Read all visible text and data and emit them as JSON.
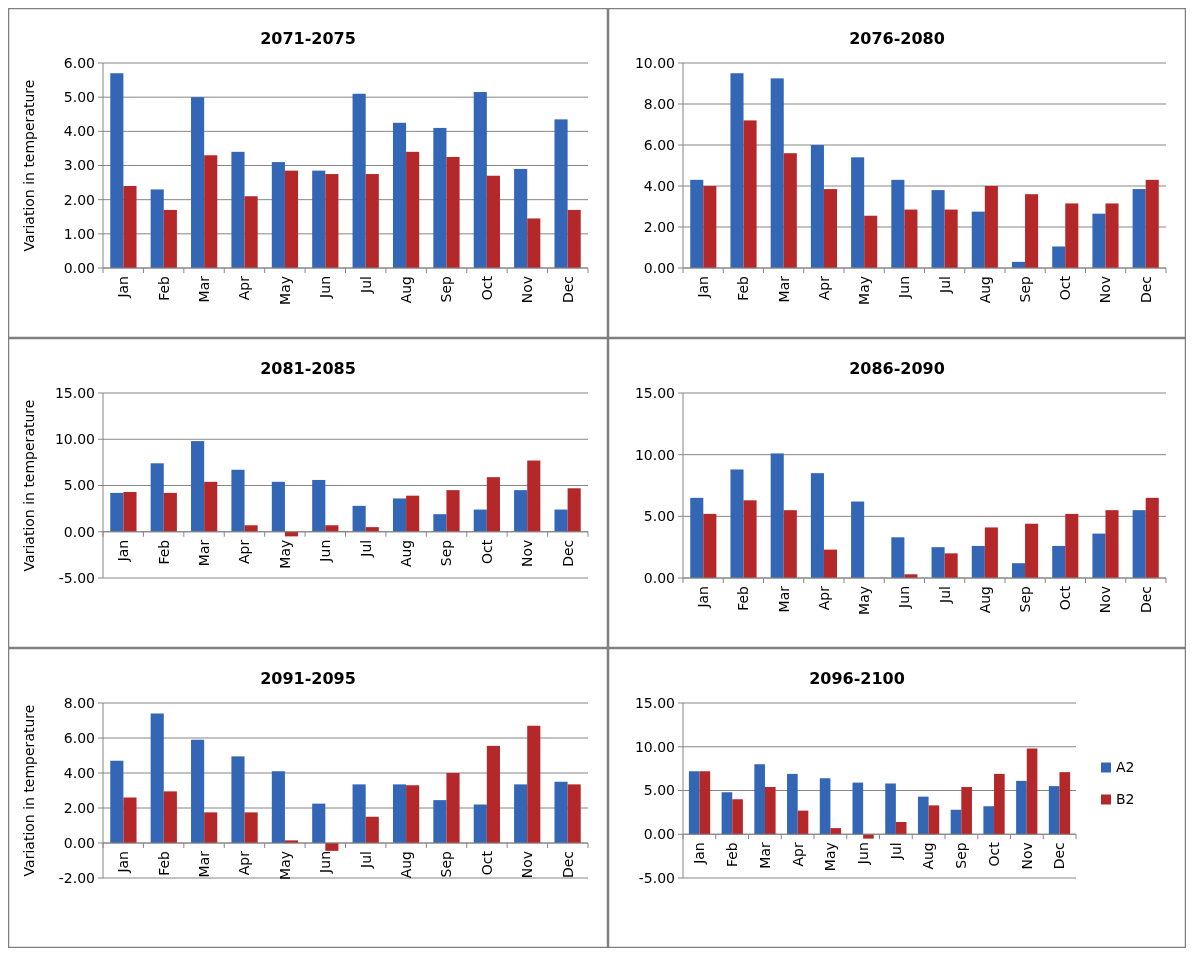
{
  "chart_data": [
    {
      "type": "bar",
      "title": "2071-2075",
      "ylabel": "Variation in temperature",
      "categories": [
        "Jan",
        "Feb",
        "Mar",
        "Apr",
        "May",
        "Jun",
        "Jul",
        "Aug",
        "Sep",
        "Oct",
        "Nov",
        "Dec"
      ],
      "series": [
        {
          "color": "#3366b5",
          "values": [
            5.7,
            2.3,
            5.0,
            3.4,
            3.1,
            2.85,
            5.1,
            4.25,
            4.1,
            5.15,
            2.9,
            4.35
          ]
        },
        {
          "color": "#b5282a",
          "values": [
            2.4,
            1.7,
            3.3,
            2.1,
            2.85,
            2.75,
            2.75,
            3.4,
            3.25,
            2.7,
            1.45,
            1.7
          ]
        }
      ],
      "ylim": [
        0,
        6
      ],
      "yticks": [
        {
          "value": 0,
          "label": "0.00"
        },
        {
          "value": 1,
          "label": "1.00"
        },
        {
          "value": 2,
          "label": "2.00"
        },
        {
          "value": 3,
          "label": "3.00"
        },
        {
          "value": 4,
          "label": "4.00"
        },
        {
          "value": 5,
          "label": "5.00"
        },
        {
          "value": 6,
          "label": "6.00"
        }
      ],
      "grid": "y"
    },
    {
      "type": "bar",
      "title": "2076-2080",
      "categories": [
        "Jan",
        "Feb",
        "Mar",
        "Apr",
        "May",
        "Jun",
        "Jul",
        "Aug",
        "Sep",
        "Oct",
        "Nov",
        "Dec"
      ],
      "series": [
        {
          "color": "#3366b5",
          "values": [
            4.3,
            9.5,
            9.25,
            6.0,
            5.4,
            4.3,
            3.8,
            2.75,
            0.3,
            1.05,
            2.65,
            3.85
          ]
        },
        {
          "color": "#b5282a",
          "values": [
            4.0,
            7.2,
            5.6,
            3.85,
            2.55,
            2.85,
            2.85,
            4.0,
            3.6,
            3.15,
            3.15,
            4.3
          ]
        }
      ],
      "ylim": [
        0,
        10
      ],
      "yticks": [
        {
          "value": 0,
          "label": "0.00"
        },
        {
          "value": 2,
          "label": "2.00"
        },
        {
          "value": 4,
          "label": "4.00"
        },
        {
          "value": 6,
          "label": "6.00"
        },
        {
          "value": 8,
          "label": "8.00"
        },
        {
          "value": 10,
          "label": "10.00"
        }
      ],
      "grid": "y"
    },
    {
      "type": "bar",
      "title": "2081-2085",
      "ylabel": "Variation in temperature",
      "categories": [
        "Jan",
        "Feb",
        "Mar",
        "Apr",
        "May",
        "Jun",
        "Jul",
        "Aug",
        "Sep",
        "Oct",
        "Nov",
        "Dec"
      ],
      "series": [
        {
          "color": "#3366b5",
          "values": [
            4.2,
            7.4,
            9.8,
            6.7,
            5.4,
            5.6,
            2.8,
            3.6,
            1.9,
            2.4,
            4.5,
            2.4
          ]
        },
        {
          "color": "#b5282a",
          "values": [
            4.3,
            4.2,
            5.4,
            0.7,
            -0.5,
            0.7,
            0.5,
            3.9,
            4.5,
            5.9,
            7.7,
            4.7
          ]
        }
      ],
      "ylim": [
        -5,
        15
      ],
      "yticks": [
        {
          "value": -5,
          "label": "-5.00"
        },
        {
          "value": 0,
          "label": "0.00"
        },
        {
          "value": 5,
          "label": "5.00"
        },
        {
          "value": 10,
          "label": "10.00"
        },
        {
          "value": 15,
          "label": "15.00"
        }
      ],
      "grid": "y"
    },
    {
      "type": "bar",
      "title": "2086-2090",
      "categories": [
        "Jan",
        "Feb",
        "Mar",
        "Apr",
        "May",
        "Jun",
        "Jul",
        "Aug",
        "Sep",
        "Oct",
        "Nov",
        "Dec"
      ],
      "series": [
        {
          "color": "#3366b5",
          "values": [
            6.5,
            8.8,
            10.1,
            8.5,
            6.2,
            3.3,
            2.5,
            2.6,
            1.2,
            2.6,
            3.6,
            5.5
          ]
        },
        {
          "color": "#b5282a",
          "values": [
            5.2,
            6.3,
            5.5,
            2.3,
            0,
            0.3,
            2.0,
            4.1,
            4.4,
            5.2,
            5.5,
            6.5
          ]
        }
      ],
      "ylim": [
        0,
        15
      ],
      "yticks": [
        {
          "value": 0,
          "label": "0.00"
        },
        {
          "value": 5,
          "label": "5.00"
        },
        {
          "value": 10,
          "label": "10.00"
        },
        {
          "value": 15,
          "label": "15.00"
        }
      ],
      "grid": "y"
    },
    {
      "type": "bar",
      "title": "2091-2095",
      "ylabel": "Variation in temperature",
      "categories": [
        "Jan",
        "Feb",
        "Mar",
        "Apr",
        "May",
        "Jun",
        "Jul",
        "Aug",
        "Sep",
        "Oct",
        "Nov",
        "Dec"
      ],
      "series": [
        {
          "color": "#3366b5",
          "values": [
            4.7,
            7.4,
            5.9,
            4.95,
            4.1,
            2.25,
            3.35,
            3.35,
            2.45,
            2.2,
            3.35,
            3.5
          ]
        },
        {
          "color": "#b5282a",
          "values": [
            2.6,
            2.95,
            1.75,
            1.75,
            0.15,
            -0.45,
            1.5,
            3.3,
            4.0,
            5.55,
            6.7,
            3.35
          ]
        }
      ],
      "ylim": [
        -2,
        8
      ],
      "yticks": [
        {
          "value": -2,
          "label": "-2.00"
        },
        {
          "value": 0,
          "label": "0.00"
        },
        {
          "value": 2,
          "label": "2.00"
        },
        {
          "value": 4,
          "label": "4.00"
        },
        {
          "value": 6,
          "label": "6.00"
        },
        {
          "value": 8,
          "label": "8.00"
        }
      ],
      "grid": "y"
    },
    {
      "type": "bar",
      "title": "2096-2100",
      "categories": [
        "Jan",
        "Feb",
        "Mar",
        "Apr",
        "May",
        "Jun",
        "Jul",
        "Aug",
        "Sep",
        "Oct",
        "Nov",
        "Dec"
      ],
      "series": [
        {
          "name": "A2",
          "color": "#3366b5",
          "values": [
            7.2,
            4.8,
            8.0,
            6.9,
            6.4,
            5.9,
            5.8,
            4.3,
            2.8,
            3.2,
            6.1,
            5.5
          ]
        },
        {
          "name": "B2",
          "color": "#b5282a",
          "values": [
            7.2,
            4.0,
            5.4,
            2.7,
            0.7,
            -0.5,
            1.4,
            3.3,
            5.4,
            6.9,
            9.8,
            7.1
          ]
        }
      ],
      "ylim": [
        -5,
        15
      ],
      "yticks": [
        {
          "value": -5,
          "label": "-5.00"
        },
        {
          "value": 0,
          "label": "0.00"
        },
        {
          "value": 5,
          "label": "5.00"
        },
        {
          "value": 10,
          "label": "10.00"
        },
        {
          "value": 15,
          "label": "15.00"
        }
      ],
      "grid": "y",
      "legend": "right"
    }
  ]
}
